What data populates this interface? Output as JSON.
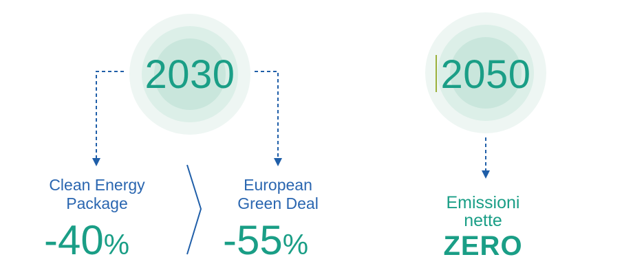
{
  "milestone_2030": {
    "year": "2030",
    "left": {
      "caption_line1": "Clean Energy",
      "caption_line2": "Package",
      "percent_value": "-40",
      "percent_sign": "%"
    },
    "right": {
      "caption_line1": "European",
      "caption_line2": "Green Deal",
      "percent_value": "-55",
      "percent_sign": "%"
    }
  },
  "milestone_2050": {
    "year": "2050",
    "caption_line1": "Emissioni",
    "caption_line2": "nette",
    "target": "ZERO"
  },
  "colors": {
    "teal_text": "#1a9e86",
    "blue_text": "#2a66b0",
    "circle_outer": "#eef6f3",
    "circle_mid": "#dcefe8",
    "circle_inner": "#c9e6dc",
    "arrow": "#1f5ea8",
    "cursor": "#9ab03a"
  },
  "icons": {
    "connector_arrow": "dashed-arrow-down-icon",
    "progression": "chevron-right-icon"
  }
}
